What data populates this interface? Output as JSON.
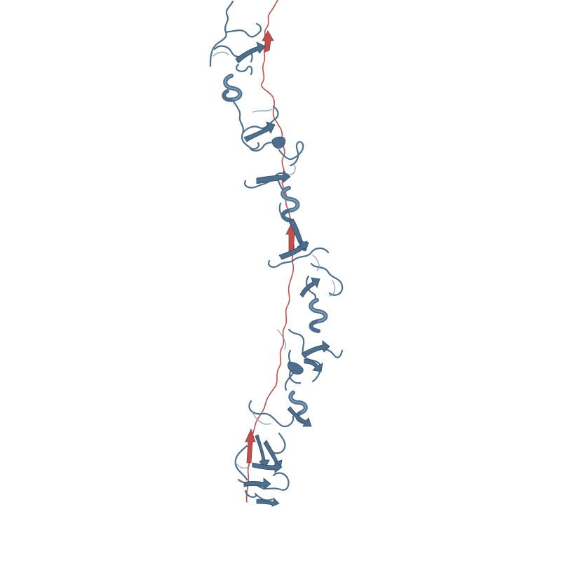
{
  "scene": {
    "subject": "protein-ribbon-structure",
    "background_color": "#ffffff",
    "chain_colors": {
      "chain_a": "#4d6e8c",
      "chain_a_light": "#7f9db7",
      "chain_a_dark": "#2f4a62",
      "chain_b": "#c0504d",
      "chain_b_dark": "#8f3533"
    }
  }
}
